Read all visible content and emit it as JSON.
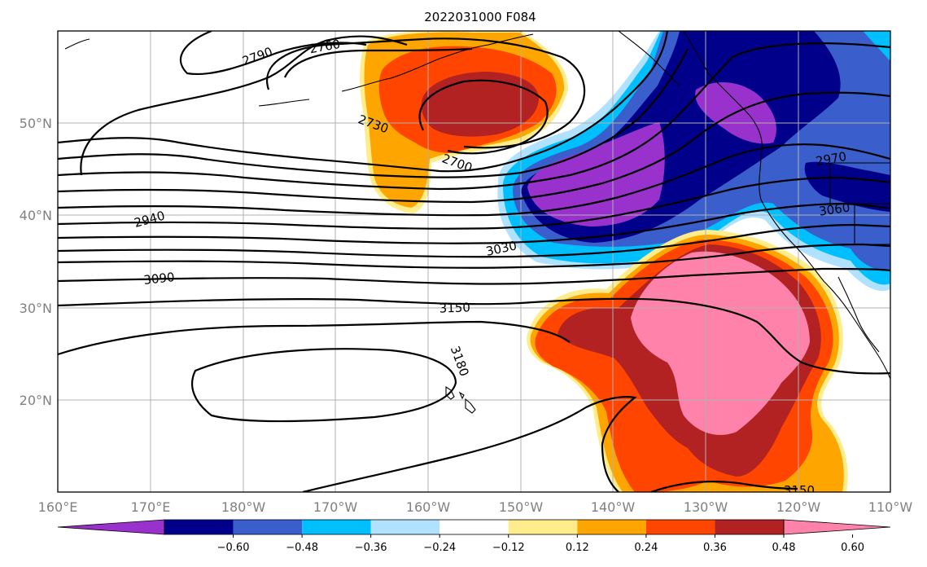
{
  "title": "2022031000 F084",
  "lon_labels": [
    "160°E",
    "170°E",
    "180°W",
    "170°W",
    "160°W",
    "150°W",
    "140°W",
    "130°W",
    "120°W",
    "110°W"
  ],
  "lat_labels": [
    "50°N",
    "40°N",
    "30°N",
    "20°N"
  ],
  "colorbar": {
    "ticks": [
      "−0.60",
      "−0.48",
      "−0.36",
      "−0.24",
      "−0.12",
      "0.12",
      "0.24",
      "0.36",
      "0.48",
      "0.60"
    ],
    "colors": [
      "#9932cc",
      "#00008b",
      "#3a5fcd",
      "#00bfff",
      "#b0e2ff",
      "#ffffff",
      "#ffec8b",
      "#ffa500",
      "#ff4500",
      "#b22222",
      "#ff82ab"
    ]
  },
  "contour_labels": [
    "2790",
    "2760",
    "2730",
    "2700",
    "2970",
    "2940",
    "3060",
    "3030",
    "3090",
    "3150",
    "3180",
    "3150"
  ],
  "shading_colors": {
    "purple": "#9932cc",
    "navy": "#00008b",
    "royal": "#3a5fcd",
    "sky": "#00bfff",
    "light": "#b0e2ff",
    "yellow": "#ffec8b",
    "orange": "#ffa500",
    "redorange": "#ff4500",
    "firebrick": "#b22222",
    "pink": "#ff82ab"
  }
}
